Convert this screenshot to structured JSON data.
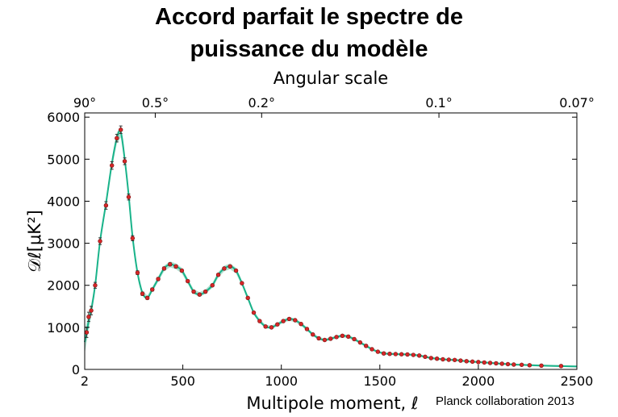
{
  "title_lines": [
    "Accord parfait le spectre de",
    "puissance du modèle"
  ],
  "credit": "Planck collaboration 2013",
  "chart_data": {
    "type": "scatter",
    "title": "Accord parfait le spectre de puissance du modèle",
    "xlabel": "Multipole moment, ℓ",
    "ylabel": "𝒟ℓ[μK²]",
    "top_axis_label": "Angular scale",
    "xlim": [
      2,
      2500
    ],
    "ylim": [
      0,
      6100
    ],
    "x_ticks": [
      2,
      500,
      1000,
      1500,
      2000,
      2500
    ],
    "x_tick_labels": [
      "2",
      "500",
      "1000",
      "1500",
      "2000",
      "2500"
    ],
    "y_ticks": [
      0,
      1000,
      2000,
      3000,
      4000,
      5000,
      6000
    ],
    "y_tick_labels": [
      "0",
      "1000",
      "2000",
      "3000",
      "4000",
      "5000",
      "6000"
    ],
    "top_ticks": [
      {
        "label": "90°",
        "ell": 2
      },
      {
        "label": "0.5°",
        "ell": 360
      },
      {
        "label": "0.2°",
        "ell": 900
      },
      {
        "label": "0.1°",
        "ell": 1800
      },
      {
        "label": "0.07°",
        "ell": 2500
      }
    ],
    "series": [
      {
        "kind": "points",
        "color": "#d62728",
        "x": [
          12,
          22,
          35,
          55,
          80,
          110,
          140,
          165,
          185,
          205,
          225,
          245,
          270,
          295,
          320,
          345,
          375,
          405,
          435,
          465,
          495,
          525,
          555,
          585,
          615,
          650,
          680,
          710,
          740,
          770,
          800,
          830,
          860,
          890,
          920,
          950,
          980,
          1010,
          1040,
          1070,
          1100,
          1130,
          1160,
          1190,
          1220,
          1250,
          1280,
          1310,
          1340,
          1370,
          1400,
          1430,
          1460,
          1490,
          1520,
          1550,
          1580,
          1610,
          1640,
          1670,
          1700,
          1730,
          1760,
          1790,
          1820,
          1850,
          1880,
          1910,
          1940,
          1970,
          2000,
          2030,
          2060,
          2090,
          2120,
          2150,
          2180,
          2220,
          2260,
          2320,
          2420
        ],
        "y": [
          880,
          1250,
          1400,
          2000,
          3050,
          3900,
          4850,
          5500,
          5700,
          4950,
          4100,
          3120,
          2300,
          1800,
          1700,
          1900,
          2150,
          2400,
          2500,
          2450,
          2350,
          2100,
          1850,
          1780,
          1850,
          2000,
          2250,
          2400,
          2450,
          2350,
          2050,
          1700,
          1350,
          1150,
          1020,
          1000,
          1070,
          1150,
          1200,
          1170,
          1080,
          960,
          830,
          740,
          700,
          730,
          770,
          800,
          780,
          720,
          640,
          560,
          480,
          420,
          380,
          370,
          365,
          360,
          355,
          345,
          330,
          300,
          270,
          255,
          240,
          230,
          225,
          210,
          195,
          185,
          175,
          165,
          155,
          145,
          135,
          125,
          115,
          110,
          100,
          90,
          80
        ],
        "err": [
          120,
          110,
          100,
          70,
          80,
          90,
          90,
          90,
          90,
          80,
          70,
          60,
          45,
          40,
          35,
          35,
          35,
          35,
          35,
          35,
          30,
          30,
          30,
          28,
          28,
          28,
          28,
          28,
          28,
          25,
          25,
          25,
          22,
          22,
          20,
          20,
          20,
          20,
          20,
          20,
          20,
          18,
          18,
          18,
          18,
          18,
          18,
          18,
          18,
          16,
          16,
          16,
          16,
          15,
          15,
          15,
          15,
          15,
          15,
          15,
          14,
          14,
          14,
          14,
          14,
          13,
          13,
          13,
          13,
          13,
          13,
          12,
          12,
          12,
          12,
          12,
          12,
          12,
          12,
          12,
          12
        ]
      },
      {
        "kind": "model",
        "color": "#19b38a",
        "x": [
          2,
          12,
          22,
          35,
          55,
          80,
          110,
          140,
          165,
          185,
          205,
          225,
          245,
          270,
          295,
          320,
          345,
          375,
          405,
          435,
          465,
          495,
          525,
          555,
          585,
          615,
          650,
          680,
          710,
          740,
          770,
          800,
          830,
          860,
          890,
          920,
          950,
          980,
          1010,
          1040,
          1070,
          1100,
          1130,
          1160,
          1190,
          1220,
          1250,
          1280,
          1310,
          1340,
          1370,
          1400,
          1430,
          1460,
          1490,
          1520,
          1550,
          1580,
          1610,
          1640,
          1670,
          1700,
          1730,
          1760,
          1790,
          1820,
          1850,
          1880,
          1910,
          1940,
          1970,
          2000,
          2030,
          2060,
          2090,
          2120,
          2150,
          2180,
          2220,
          2260,
          2320,
          2420,
          2500
        ],
        "y": [
          650,
          880,
          1150,
          1400,
          2000,
          3050,
          3950,
          4900,
          5500,
          5650,
          5000,
          4150,
          3150,
          2300,
          1820,
          1700,
          1900,
          2150,
          2400,
          2500,
          2450,
          2350,
          2100,
          1850,
          1780,
          1850,
          2000,
          2250,
          2400,
          2450,
          2350,
          2050,
          1700,
          1350,
          1150,
          1020,
          1000,
          1070,
          1150,
          1200,
          1170,
          1080,
          960,
          830,
          740,
          700,
          730,
          770,
          800,
          780,
          720,
          640,
          560,
          480,
          420,
          380,
          370,
          365,
          360,
          355,
          345,
          330,
          300,
          270,
          255,
          240,
          230,
          225,
          210,
          195,
          185,
          175,
          165,
          155,
          145,
          135,
          125,
          115,
          110,
          100,
          90,
          80,
          70
        ]
      }
    ],
    "band_color": "#9fd9c6",
    "grid": false
  }
}
